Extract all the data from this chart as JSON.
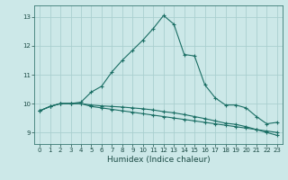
{
  "xlabel": "Humidex (Indice chaleur)",
  "bg_color": "#cce8e8",
  "grid_color": "#aacfcf",
  "line_color": "#1a6e64",
  "xlim": [
    -0.5,
    23.5
  ],
  "ylim": [
    8.6,
    13.4
  ],
  "yticks": [
    9,
    10,
    11,
    12,
    13
  ],
  "xticks": [
    0,
    1,
    2,
    3,
    4,
    5,
    6,
    7,
    8,
    9,
    10,
    11,
    12,
    13,
    14,
    15,
    16,
    17,
    18,
    19,
    20,
    21,
    22,
    23
  ],
  "line1_x": [
    0,
    1,
    2,
    3,
    4,
    5,
    6,
    7,
    8,
    9,
    10,
    11,
    12,
    13,
    14,
    15,
    16,
    17,
    18,
    19,
    20,
    21,
    22,
    23
  ],
  "line1_y": [
    9.75,
    9.9,
    10.0,
    10.0,
    10.05,
    10.4,
    10.6,
    11.1,
    11.5,
    11.85,
    12.2,
    12.6,
    13.05,
    12.75,
    11.7,
    11.65,
    10.65,
    10.2,
    9.95,
    9.95,
    9.85,
    9.55,
    9.3,
    9.35
  ],
  "line2_x": [
    0,
    1,
    2,
    3,
    4,
    5,
    6,
    7,
    8,
    9,
    10,
    11,
    12,
    13,
    14,
    15,
    16,
    17,
    18,
    19,
    20,
    21,
    22,
    23
  ],
  "line2_y": [
    9.75,
    9.9,
    10.0,
    10.0,
    10.0,
    9.9,
    9.85,
    9.8,
    9.75,
    9.7,
    9.65,
    9.6,
    9.55,
    9.5,
    9.45,
    9.4,
    9.35,
    9.3,
    9.25,
    9.2,
    9.15,
    9.1,
    9.05,
    9.0
  ],
  "line3_x": [
    0,
    1,
    2,
    3,
    4,
    5,
    6,
    7,
    8,
    9,
    10,
    11,
    12,
    13,
    14,
    15,
    16,
    17,
    18,
    19,
    20,
    21,
    22,
    23
  ],
  "line3_y": [
    9.75,
    9.9,
    10.0,
    10.0,
    10.0,
    9.95,
    9.92,
    9.9,
    9.88,
    9.85,
    9.82,
    9.78,
    9.72,
    9.68,
    9.62,
    9.55,
    9.48,
    9.4,
    9.32,
    9.28,
    9.2,
    9.1,
    9.0,
    8.9
  ],
  "marker": "+",
  "markersize": 3,
  "linewidth": 0.8,
  "tick_fontsize": 5,
  "xlabel_fontsize": 6.5
}
